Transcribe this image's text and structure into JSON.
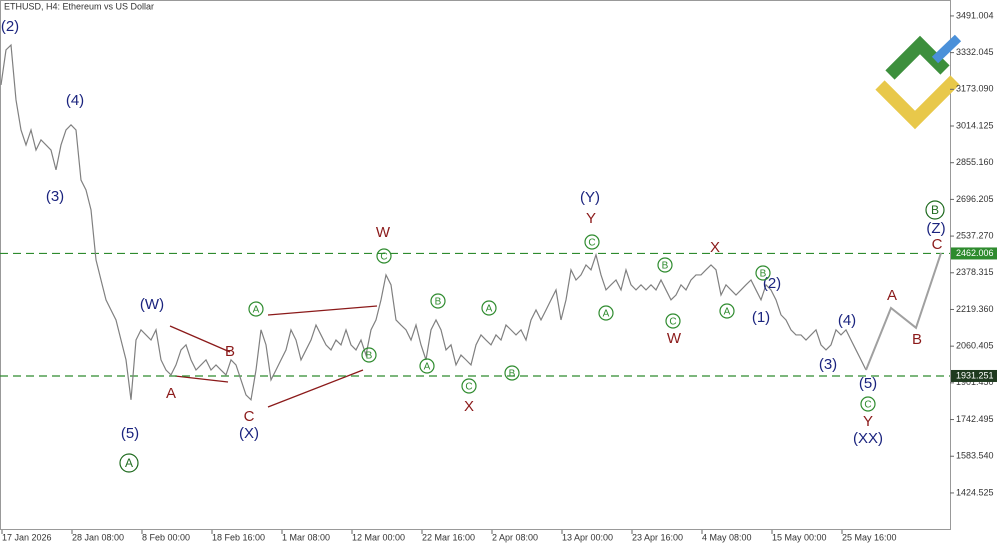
{
  "chart_data": {
    "type": "line",
    "title": "ETHUSD, H4:  Ethereum vs US Dollar",
    "color": "#808080",
    "values": [
      3192,
      3344,
      3365,
      3127,
      2997,
      2932,
      2997,
      2910,
      2954,
      2932,
      2910,
      2824,
      2932,
      2997,
      3019,
      2997,
      2780,
      2737,
      2651,
      2434,
      2347,
      2261,
      2217,
      2174,
      2087,
      2001,
      1828,
      2087,
      2131,
      2109,
      2087,
      2131,
      2001,
      1957,
      1936,
      1979,
      2044,
      2066,
      2001,
      1957,
      1979,
      2001,
      1957,
      1979,
      1957,
      1936,
      2001,
      1979,
      1914,
      1849,
      1828,
      1957,
      2131,
      2066,
      1914,
      1957,
      2001,
      2044,
      2131,
      2087,
      2001,
      2044,
      2087,
      2152,
      2109,
      2066,
      2044,
      2087,
      2066,
      2131,
      2066,
      2044,
      2087,
      2022,
      2131,
      2174,
      2261,
      2369,
      2326,
      2174,
      2152,
      2131,
      2087,
      2152,
      2066,
      2001,
      2131,
      2174,
      2131,
      2044,
      2066,
      1979,
      2022,
      2001,
      1979,
      2066,
      2109,
      2087,
      2066,
      2109,
      2087,
      2152,
      2131,
      2109,
      2131,
      2087,
      2174,
      2217,
      2174,
      2217,
      2261,
      2304,
      2174,
      2261,
      2391,
      2347,
      2369,
      2412,
      2391,
      2456,
      2369,
      2304,
      2326,
      2347,
      2304,
      2391,
      2326,
      2304,
      2326,
      2304,
      2326,
      2304,
      2347,
      2304,
      2261,
      2282,
      2326,
      2304,
      2347,
      2369,
      2369,
      2391,
      2412,
      2391,
      2282,
      2326,
      2304,
      2282,
      2304,
      2326,
      2347,
      2304,
      2261,
      2326,
      2304,
      2261,
      2196,
      2174,
      2131,
      2109,
      2109,
      2087,
      2109,
      2131,
      2066,
      2044,
      2066,
      2131,
      2109,
      2131,
      2087,
      2044,
      2001,
      1957
    ],
    "projection": {
      "color": "#a0a0a0",
      "values": [
        1957,
        2226,
        2140,
        2464
      ]
    },
    "ylim": [
      1264,
      3560
    ],
    "yticks": [
      3491.004,
      3332.045,
      {
        "value": 3173.09,
        "label": "3173.090"
      },
      3014.125,
      {
        "value": 2855.16,
        "label": "2855.160"
      },
      2696.205,
      {
        "value": 2537.27,
        "label": "2537.270"
      },
      2378.315,
      {
        "value": 2219.36,
        "label": "2219.360"
      },
      2060.405,
      {
        "value": 1901.45,
        "label": "1901.450"
      },
      1742.495,
      {
        "value": 1583.54,
        "label": "1583.540"
      },
      1424.525
    ],
    "xticks": [
      "17 Jan 2026",
      "28 Jan 08:00",
      "8 Feb 00:00",
      "18 Feb 16:00",
      "1 Mar 08:00",
      "12 Mar 00:00",
      "22 Mar 16:00",
      "2 Apr 08:00",
      "13 Apr 00:00",
      "23 Apr 16:00",
      "4 May 08:00",
      "15 May 00:00",
      "25 May 16:00"
    ],
    "levels": [
      {
        "value": 2462.006,
        "color": "#2e8b2e"
      },
      {
        "value": 1931.251,
        "color": "#2e8b2e"
      }
    ],
    "annotations": [
      {
        "text": "(2)",
        "style": "navy"
      },
      {
        "text": "(4)",
        "style": "navy"
      },
      {
        "text": "(3)",
        "style": "navy"
      },
      {
        "text": "(W)",
        "style": "navy"
      },
      {
        "text": "(5)",
        "style": "navy"
      },
      {
        "text": "(X)",
        "style": "navy"
      },
      {
        "text": "(Y)",
        "style": "navy"
      },
      {
        "text": "(Z)",
        "style": "navy"
      },
      {
        "text": "(XX)",
        "style": "navy"
      },
      {
        "text": "(1)",
        "style": "navy"
      },
      {
        "text": "(2)",
        "style": "navy"
      },
      {
        "text": "(3)",
        "style": "navy"
      },
      {
        "text": "(4)",
        "style": "navy"
      },
      {
        "text": "(5)",
        "style": "navy"
      },
      {
        "text": "W",
        "style": "red"
      },
      {
        "text": "Y",
        "style": "red"
      },
      {
        "text": "X",
        "style": "red"
      },
      {
        "text": "W",
        "style": "red"
      },
      {
        "text": "X",
        "style": "red"
      },
      {
        "text": "A",
        "style": "red"
      },
      {
        "text": "B",
        "style": "red"
      },
      {
        "text": "C",
        "style": "red"
      },
      {
        "text": "A",
        "style": "red"
      },
      {
        "text": "B",
        "style": "red"
      },
      {
        "text": "C",
        "style": "red"
      },
      {
        "text": "Y",
        "style": "red"
      },
      {
        "text": "A",
        "style": "big-circle"
      },
      {
        "text": "B",
        "style": "big-circle"
      },
      {
        "text": "C",
        "style": "circle"
      },
      {
        "text": "A",
        "style": "circle"
      },
      {
        "text": "B",
        "style": "circle"
      },
      {
        "text": "B",
        "style": "circle"
      },
      {
        "text": "A",
        "style": "circle"
      },
      {
        "text": "A",
        "style": "circle"
      },
      {
        "text": "C",
        "style": "circle"
      },
      {
        "text": "B",
        "style": "circle"
      },
      {
        "text": "C",
        "style": "circle"
      },
      {
        "text": "B",
        "style": "circle"
      },
      {
        "text": "C",
        "style": "circle"
      },
      {
        "text": "A",
        "style": "circle"
      },
      {
        "text": "B",
        "style": "circle"
      },
      {
        "text": "A",
        "style": "circle"
      },
      {
        "text": "C",
        "style": "circle"
      }
    ]
  }
}
